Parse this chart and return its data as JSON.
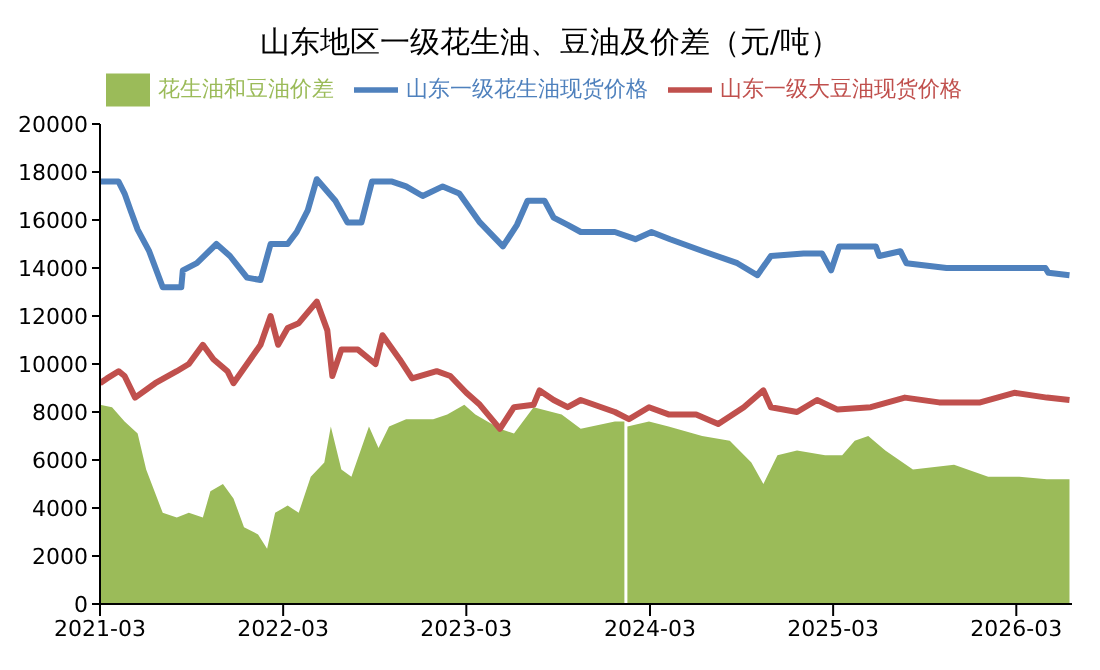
{
  "chart_data": {
    "type": "line",
    "title": "山东地区一级花生油、豆油及价差（元/吨）",
    "legend": "top",
    "xlim": [
      "2021-03",
      "2026-06-20"
    ],
    "xticks": [
      "2021-03",
      "2022-03",
      "2023-03",
      "2024-03",
      "2025-03",
      "2026-03"
    ],
    "ylim": [
      0,
      20000
    ],
    "yticks": [
      0,
      2000,
      4000,
      6000,
      8000,
      10000,
      12000,
      14000,
      16000,
      18000,
      20000
    ],
    "grid": false,
    "marker": "none",
    "series": [
      {
        "name": "花生油和豆油价差",
        "type": "area",
        "color": "#9bbb59",
        "x": [
          "2021-03-01",
          "2021-03-25",
          "2021-04-19",
          "2021-05-15",
          "2021-06-01",
          "2021-07-04",
          "2021-08-01",
          "2021-08-25",
          "2021-09-22",
          "2021-10-07",
          "2021-11-01",
          "2021-11-22",
          "2021-12-13",
          "2022-01-10",
          "2022-01-28",
          "2022-02-13",
          "2022-03-10",
          "2022-04-01",
          "2022-04-25",
          "2022-05-22",
          "2022-06-04",
          "2022-06-25",
          "2022-07-15",
          "2022-08-19",
          "2022-09-07",
          "2022-09-28",
          "2022-11-01",
          "2022-12-25",
          "2023-01-22",
          "2023-02-25",
          "2023-03-19",
          "2023-05-07",
          "2023-06-04",
          "2023-07-13",
          "2023-09-07",
          "2023-10-15",
          "2023-12-22",
          "2024-01-10",
          "2024-01-13",
          "2024-01-16",
          "2024-02-28",
          "2024-04-07",
          "2024-06-13",
          "2024-08-07",
          "2024-09-19",
          "2024-10-13",
          "2024-11-10",
          "2024-12-19",
          "2025-02-13",
          "2025-03-19",
          "2025-04-13",
          "2025-05-10",
          "2025-06-13",
          "2025-08-07",
          "2025-10-28",
          "2026-01-04",
          "2026-03-07",
          "2026-05-01",
          "2026-06-15"
        ],
        "values": [
          8300,
          8200,
          7600,
          7100,
          5600,
          3800,
          3600,
          3800,
          3600,
          4700,
          5000,
          4400,
          3200,
          2900,
          2300,
          3800,
          4100,
          3800,
          5300,
          5900,
          7400,
          5600,
          5300,
          7400,
          6500,
          7400,
          7700,
          7700,
          7900,
          8300,
          7900,
          7300,
          7100,
          8200,
          7900,
          7300,
          7600,
          7600,
          null,
          7400,
          7600,
          7400,
          7000,
          6800,
          5900,
          5000,
          6200,
          6400,
          6200,
          6200,
          6800,
          7000,
          6400,
          5600,
          5800,
          5300,
          5300,
          5200,
          5200
        ]
      },
      {
        "name": "山东一级花生油现货价格",
        "color": "#4f81bd",
        "x": [
          "2021-03-01",
          "2021-04-07",
          "2021-04-19",
          "2021-05-01",
          "2021-05-15",
          "2021-06-07",
          "2021-07-04",
          "2021-08-10",
          "2021-08-13",
          "2021-09-10",
          "2021-10-19",
          "2021-11-15",
          "2021-12-19",
          "2022-01-15",
          "2022-02-04",
          "2022-03-10",
          "2022-03-28",
          "2022-04-19",
          "2022-05-07",
          "2022-06-13",
          "2022-07-07",
          "2022-08-04",
          "2022-08-25",
          "2022-10-04",
          "2022-11-01",
          "2022-12-04",
          "2023-01-13",
          "2023-02-15",
          "2023-03-28",
          "2023-05-13",
          "2023-06-10",
          "2023-07-01",
          "2023-08-04",
          "2023-08-22",
          "2023-09-19",
          "2023-10-15",
          "2023-12-22",
          "2024-02-01",
          "2024-03-04",
          "2024-04-10",
          "2024-06-15",
          "2024-08-22",
          "2024-10-01",
          "2024-10-28",
          "2025-01-01",
          "2025-02-07",
          "2025-02-25",
          "2025-03-13",
          "2025-05-25",
          "2025-06-01",
          "2025-07-13",
          "2025-07-25",
          "2025-10-13",
          "2026-04-28",
          "2026-05-04",
          "2026-06-15"
        ],
        "values": [
          17600,
          17600,
          17100,
          16400,
          15600,
          14700,
          13200,
          13200,
          13900,
          14200,
          15000,
          14500,
          13600,
          13500,
          15000,
          15000,
          15500,
          16400,
          17700,
          16800,
          15900,
          15900,
          17600,
          17600,
          17400,
          17000,
          17400,
          17100,
          15900,
          14900,
          15800,
          16800,
          16800,
          16100,
          15800,
          15500,
          15500,
          15200,
          15500,
          15200,
          14700,
          14200,
          13700,
          14500,
          14600,
          14600,
          13900,
          14900,
          14900,
          14500,
          14700,
          14200,
          14000,
          14000,
          13800,
          13700
        ]
      },
      {
        "name": "山东一级大豆油现货价格",
        "color": "#c0504d",
        "x": [
          "2021-03-01",
          "2021-03-15",
          "2021-04-07",
          "2021-04-19",
          "2021-05-10",
          "2021-06-19",
          "2021-08-01",
          "2021-08-25",
          "2021-09-22",
          "2021-10-13",
          "2021-11-10",
          "2021-11-22",
          "2021-12-19",
          "2022-01-15",
          "2022-02-04",
          "2022-02-19",
          "2022-03-10",
          "2022-04-01",
          "2022-05-07",
          "2022-05-28",
          "2022-06-07",
          "2022-06-25",
          "2022-07-28",
          "2022-09-01",
          "2022-09-15",
          "2022-10-19",
          "2022-11-13",
          "2023-01-01",
          "2023-01-28",
          "2023-03-01",
          "2023-03-28",
          "2023-05-07",
          "2023-06-04",
          "2023-07-13",
          "2023-07-25",
          "2023-08-22",
          "2023-09-19",
          "2023-10-15",
          "2023-12-22",
          "2024-01-19",
          "2024-02-28",
          "2024-04-07",
          "2024-06-01",
          "2024-07-15",
          "2024-09-04",
          "2024-10-13",
          "2024-10-28",
          "2024-12-19",
          "2025-01-28",
          "2025-03-10",
          "2025-05-15",
          "2025-07-22",
          "2025-09-28",
          "2025-12-19",
          "2026-02-25",
          "2026-05-01",
          "2026-06-15"
        ],
        "values": [
          9200,
          9400,
          9700,
          9500,
          8600,
          9200,
          9700,
          10000,
          10800,
          10200,
          9700,
          9200,
          10000,
          10800,
          12000,
          10800,
          11500,
          11700,
          12600,
          11400,
          9500,
          10600,
          10600,
          10000,
          11200,
          10200,
          9400,
          9700,
          9500,
          8800,
          8300,
          7300,
          8200,
          8300,
          8900,
          8500,
          8200,
          8500,
          8000,
          7700,
          8200,
          7900,
          7900,
          7500,
          8200,
          8900,
          8200,
          8000,
          8500,
          8100,
          8200,
          8600,
          8400,
          8400,
          8800,
          8600,
          8500
        ]
      }
    ]
  }
}
